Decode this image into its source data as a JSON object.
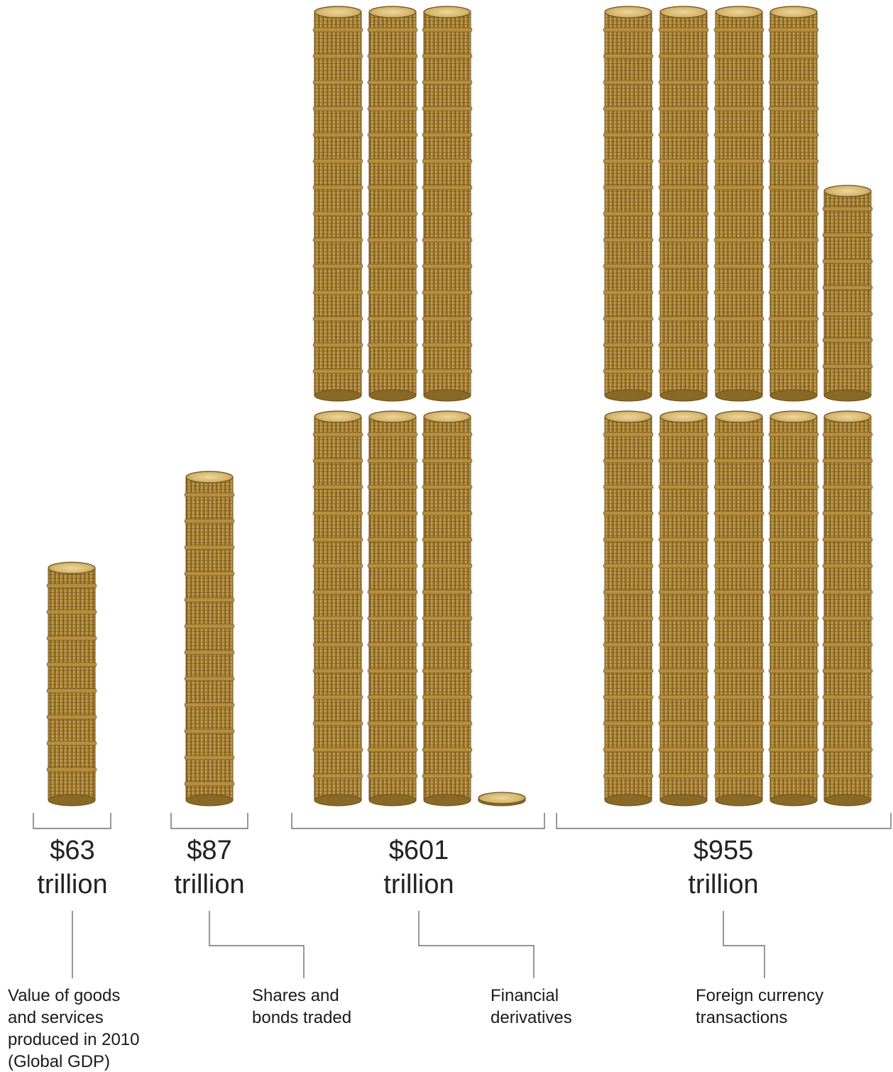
{
  "chart_data": {
    "type": "bar",
    "style": "coin-stacks",
    "categories": [
      "Global GDP",
      "Shares and bonds",
      "Financial derivatives",
      "Foreign currency"
    ],
    "values": [
      63,
      87,
      601,
      955
    ],
    "value_labels": [
      [
        "$63",
        "trillion"
      ],
      [
        "$87",
        "trillion"
      ],
      [
        "$601",
        "trillion"
      ],
      [
        "$955",
        "trillion"
      ]
    ],
    "descriptions": [
      [
        "Value of goods",
        "and services",
        "produced in 2010",
        "(Global GDP)"
      ],
      [
        "Shares and",
        "bonds traded"
      ],
      [
        "Financial",
        "derivatives"
      ],
      [
        "Foreign currency",
        "transactions"
      ]
    ],
    "coin_color": "#b8913f",
    "coin_edge": "#6e4f1c",
    "coin_top": "#e2c683"
  }
}
